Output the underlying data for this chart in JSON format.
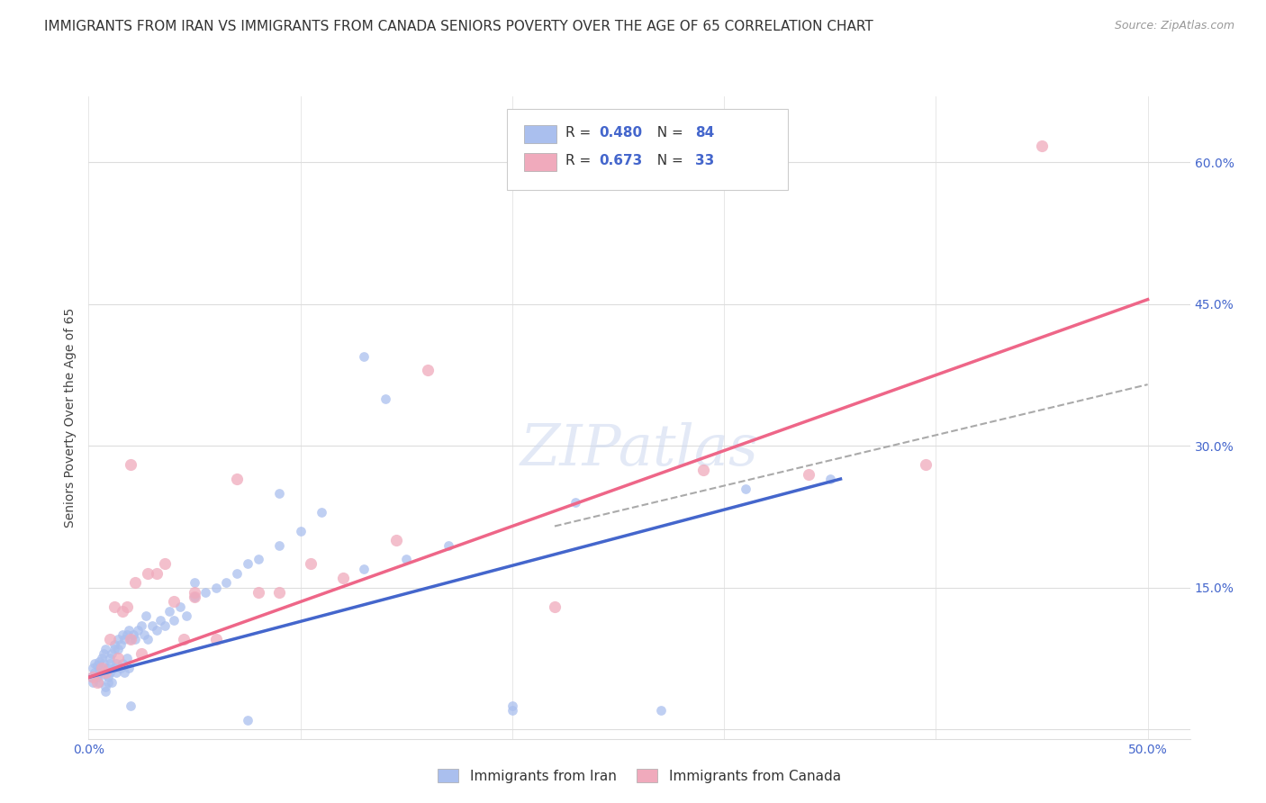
{
  "title": "IMMIGRANTS FROM IRAN VS IMMIGRANTS FROM CANADA SENIORS POVERTY OVER THE AGE OF 65 CORRELATION CHART",
  "source": "Source: ZipAtlas.com",
  "ylabel": "Seniors Poverty Over the Age of 65",
  "xlim": [
    0.0,
    0.52
  ],
  "ylim": [
    -0.01,
    0.67
  ],
  "xticks": [
    0.0,
    0.1,
    0.2,
    0.3,
    0.4,
    0.5
  ],
  "xtick_labels_show": [
    "0.0%",
    "",
    "",
    "",
    "",
    "50.0%"
  ],
  "yticks": [
    0.0,
    0.15,
    0.3,
    0.45,
    0.6
  ],
  "ytick_labels_left": [
    "",
    "",
    "",
    "",
    ""
  ],
  "ytick_labels_right": [
    "",
    "15.0%",
    "30.0%",
    "45.0%",
    "60.0%"
  ],
  "iran_color": "#aabfee",
  "canada_color": "#f0aabc",
  "iran_line_color": "#4466cc",
  "canada_line_color": "#ee6688",
  "dashed_line_color": "#aaaaaa",
  "iran_R": 0.48,
  "iran_N": 84,
  "canada_R": 0.673,
  "canada_N": 33,
  "watermark": "ZIPatlas",
  "iran_scatter_x": [
    0.001,
    0.002,
    0.002,
    0.003,
    0.003,
    0.004,
    0.004,
    0.005,
    0.005,
    0.005,
    0.006,
    0.006,
    0.007,
    0.007,
    0.007,
    0.008,
    0.008,
    0.008,
    0.009,
    0.009,
    0.009,
    0.01,
    0.01,
    0.01,
    0.011,
    0.011,
    0.012,
    0.012,
    0.012,
    0.013,
    0.013,
    0.014,
    0.014,
    0.015,
    0.015,
    0.016,
    0.016,
    0.017,
    0.017,
    0.018,
    0.018,
    0.019,
    0.019,
    0.02,
    0.021,
    0.022,
    0.023,
    0.025,
    0.026,
    0.027,
    0.028,
    0.03,
    0.032,
    0.034,
    0.036,
    0.038,
    0.04,
    0.043,
    0.046,
    0.05,
    0.055,
    0.06,
    0.065,
    0.07,
    0.075,
    0.08,
    0.09,
    0.1,
    0.11,
    0.13,
    0.15,
    0.17,
    0.2,
    0.23,
    0.27,
    0.31,
    0.35,
    0.2,
    0.13,
    0.09,
    0.05,
    0.02,
    0.075,
    0.14
  ],
  "iran_scatter_y": [
    0.055,
    0.065,
    0.05,
    0.07,
    0.06,
    0.068,
    0.055,
    0.072,
    0.06,
    0.05,
    0.075,
    0.065,
    0.07,
    0.058,
    0.08,
    0.045,
    0.085,
    0.04,
    0.055,
    0.065,
    0.05,
    0.07,
    0.06,
    0.075,
    0.08,
    0.05,
    0.085,
    0.065,
    0.09,
    0.07,
    0.06,
    0.085,
    0.095,
    0.09,
    0.065,
    0.1,
    0.07,
    0.095,
    0.06,
    0.1,
    0.075,
    0.105,
    0.065,
    0.095,
    0.1,
    0.095,
    0.105,
    0.11,
    0.1,
    0.12,
    0.095,
    0.11,
    0.105,
    0.115,
    0.11,
    0.125,
    0.115,
    0.13,
    0.12,
    0.14,
    0.145,
    0.15,
    0.155,
    0.165,
    0.175,
    0.18,
    0.195,
    0.21,
    0.23,
    0.17,
    0.18,
    0.195,
    0.02,
    0.24,
    0.02,
    0.255,
    0.265,
    0.025,
    0.395,
    0.25,
    0.155,
    0.025,
    0.01,
    0.35
  ],
  "canada_scatter_x": [
    0.002,
    0.004,
    0.006,
    0.008,
    0.01,
    0.012,
    0.014,
    0.016,
    0.018,
    0.02,
    0.022,
    0.025,
    0.028,
    0.032,
    0.036,
    0.04,
    0.045,
    0.05,
    0.06,
    0.07,
    0.08,
    0.09,
    0.105,
    0.12,
    0.145,
    0.02,
    0.05,
    0.16,
    0.22,
    0.29,
    0.34,
    0.395,
    0.45
  ],
  "canada_scatter_y": [
    0.055,
    0.05,
    0.065,
    0.06,
    0.095,
    0.13,
    0.075,
    0.125,
    0.13,
    0.095,
    0.155,
    0.08,
    0.165,
    0.165,
    0.175,
    0.135,
    0.095,
    0.14,
    0.095,
    0.265,
    0.145,
    0.145,
    0.175,
    0.16,
    0.2,
    0.28,
    0.145,
    0.38,
    0.13,
    0.275,
    0.27,
    0.28,
    0.618
  ],
  "iran_line_x": [
    0.0,
    0.355
  ],
  "iran_line_y": [
    0.055,
    0.265
  ],
  "canada_line_x": [
    0.0,
    0.5
  ],
  "canada_line_y": [
    0.055,
    0.455
  ],
  "dashed_line_x": [
    0.22,
    0.5
  ],
  "dashed_line_y": [
    0.215,
    0.365
  ],
  "background_color": "#ffffff",
  "grid_color": "#dddddd",
  "title_fontsize": 11,
  "label_fontsize": 10,
  "tick_fontsize": 10,
  "legend_fontsize": 11,
  "bottom_legend_labels": [
    "Immigrants from Iran",
    "Immigrants from Canada"
  ]
}
